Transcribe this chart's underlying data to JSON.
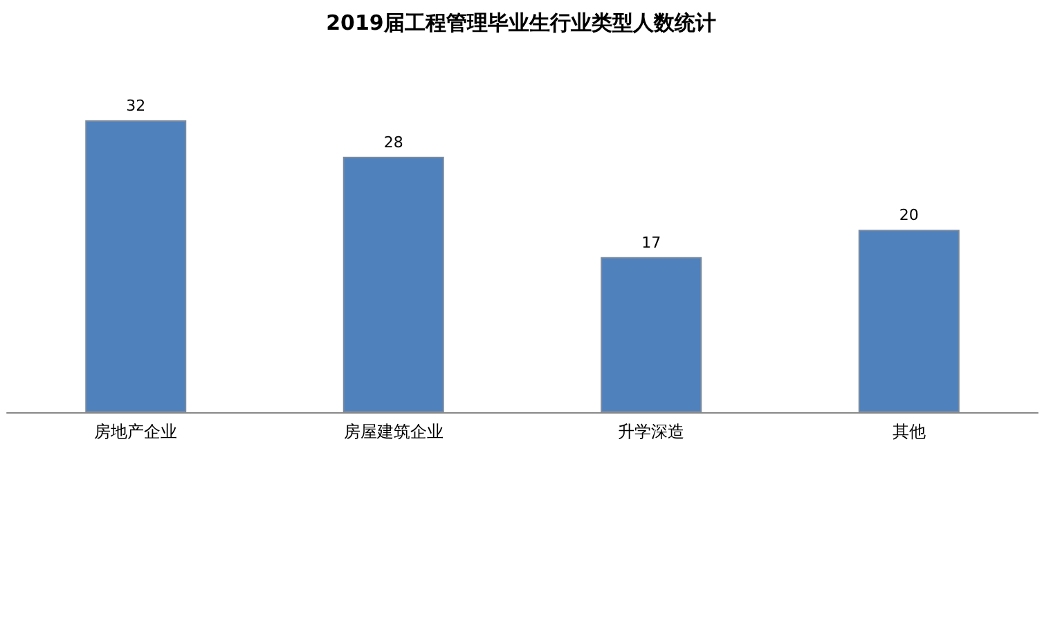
{
  "chart_data": {
    "type": "bar",
    "title": "2019届工程管理毕业生行业类型人数统计",
    "categories": [
      "房地产企业",
      "房屋建筑企业",
      "升学深造",
      "其他"
    ],
    "values": [
      32,
      28,
      17,
      20
    ],
    "color": "#4f81bd",
    "data_labels": true
  }
}
